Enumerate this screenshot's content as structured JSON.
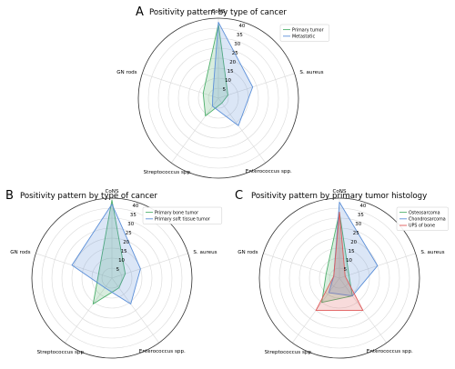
{
  "colors": {
    "series_green": "#4daf6b",
    "series_blue": "#5b8fd8",
    "series_red": "#e05a5a",
    "grid": "#d9d9d9",
    "frame": "#333333",
    "tick_text": "#000000"
  },
  "chart_data": [
    {
      "type": "radar",
      "letter": "A",
      "title": "Positivity pattern by type of cancer",
      "axes": [
        "CoNS",
        "S. aureus",
        "Enterococcus spp.",
        "Streptococcus spp.",
        "GN rods"
      ],
      "rticks": [
        5,
        10,
        15,
        20,
        25,
        30,
        35,
        40
      ],
      "rlim": [
        0,
        40
      ],
      "grid": true,
      "legend_position": "top-right",
      "series": [
        {
          "name": "Primary tumor",
          "color": "#4daf6b",
          "values": [
            37,
            5,
            3,
            11,
            8
          ]
        },
        {
          "name": "Metastatic",
          "color": "#5b8fd8",
          "values": [
            38,
            18,
            17,
            5,
            3
          ]
        }
      ]
    },
    {
      "type": "radar",
      "letter": "B",
      "title": "Positivity pattern by type of cancer",
      "axes": [
        "CoNS",
        "S. aureus",
        "Enterococcus spp.",
        "Streptococcus spp.",
        "GN rods"
      ],
      "rticks": [
        5,
        10,
        15,
        20,
        25,
        30,
        35,
        40
      ],
      "rlim": [
        0,
        40
      ],
      "grid": true,
      "legend_position": "top-right",
      "series": [
        {
          "name": "Primary bone tumor",
          "color": "#4daf6b",
          "values": [
            39,
            7,
            6,
            16,
            7
          ]
        },
        {
          "name": "Primary soft tissue tumor",
          "color": "#5b8fd8",
          "values": [
            37,
            15,
            16,
            6,
            21
          ]
        }
      ]
    },
    {
      "type": "radar",
      "letter": "C",
      "title": "Positivity pattern by primary tumor histology",
      "axes": [
        "CoNS",
        "S. aureus",
        "Enterococcus spp.",
        "Streptococcus spp.",
        "GN rods"
      ],
      "rticks": [
        5,
        10,
        15,
        20,
        25,
        30,
        35,
        40
      ],
      "rlim": [
        0,
        40
      ],
      "grid": true,
      "legend_position": "top-right",
      "series": [
        {
          "name": "Osteosarcoma",
          "color": "#4daf6b",
          "values": [
            33,
            5,
            11,
            15,
            7
          ]
        },
        {
          "name": "Chondrosarcoma",
          "color": "#5b8fd8",
          "values": [
            38,
            20,
            11,
            9,
            3
          ]
        },
        {
          "name": "UPS of bone",
          "color": "#e05a5a",
          "values": [
            33,
            3,
            20,
            20,
            3
          ]
        }
      ]
    }
  ]
}
